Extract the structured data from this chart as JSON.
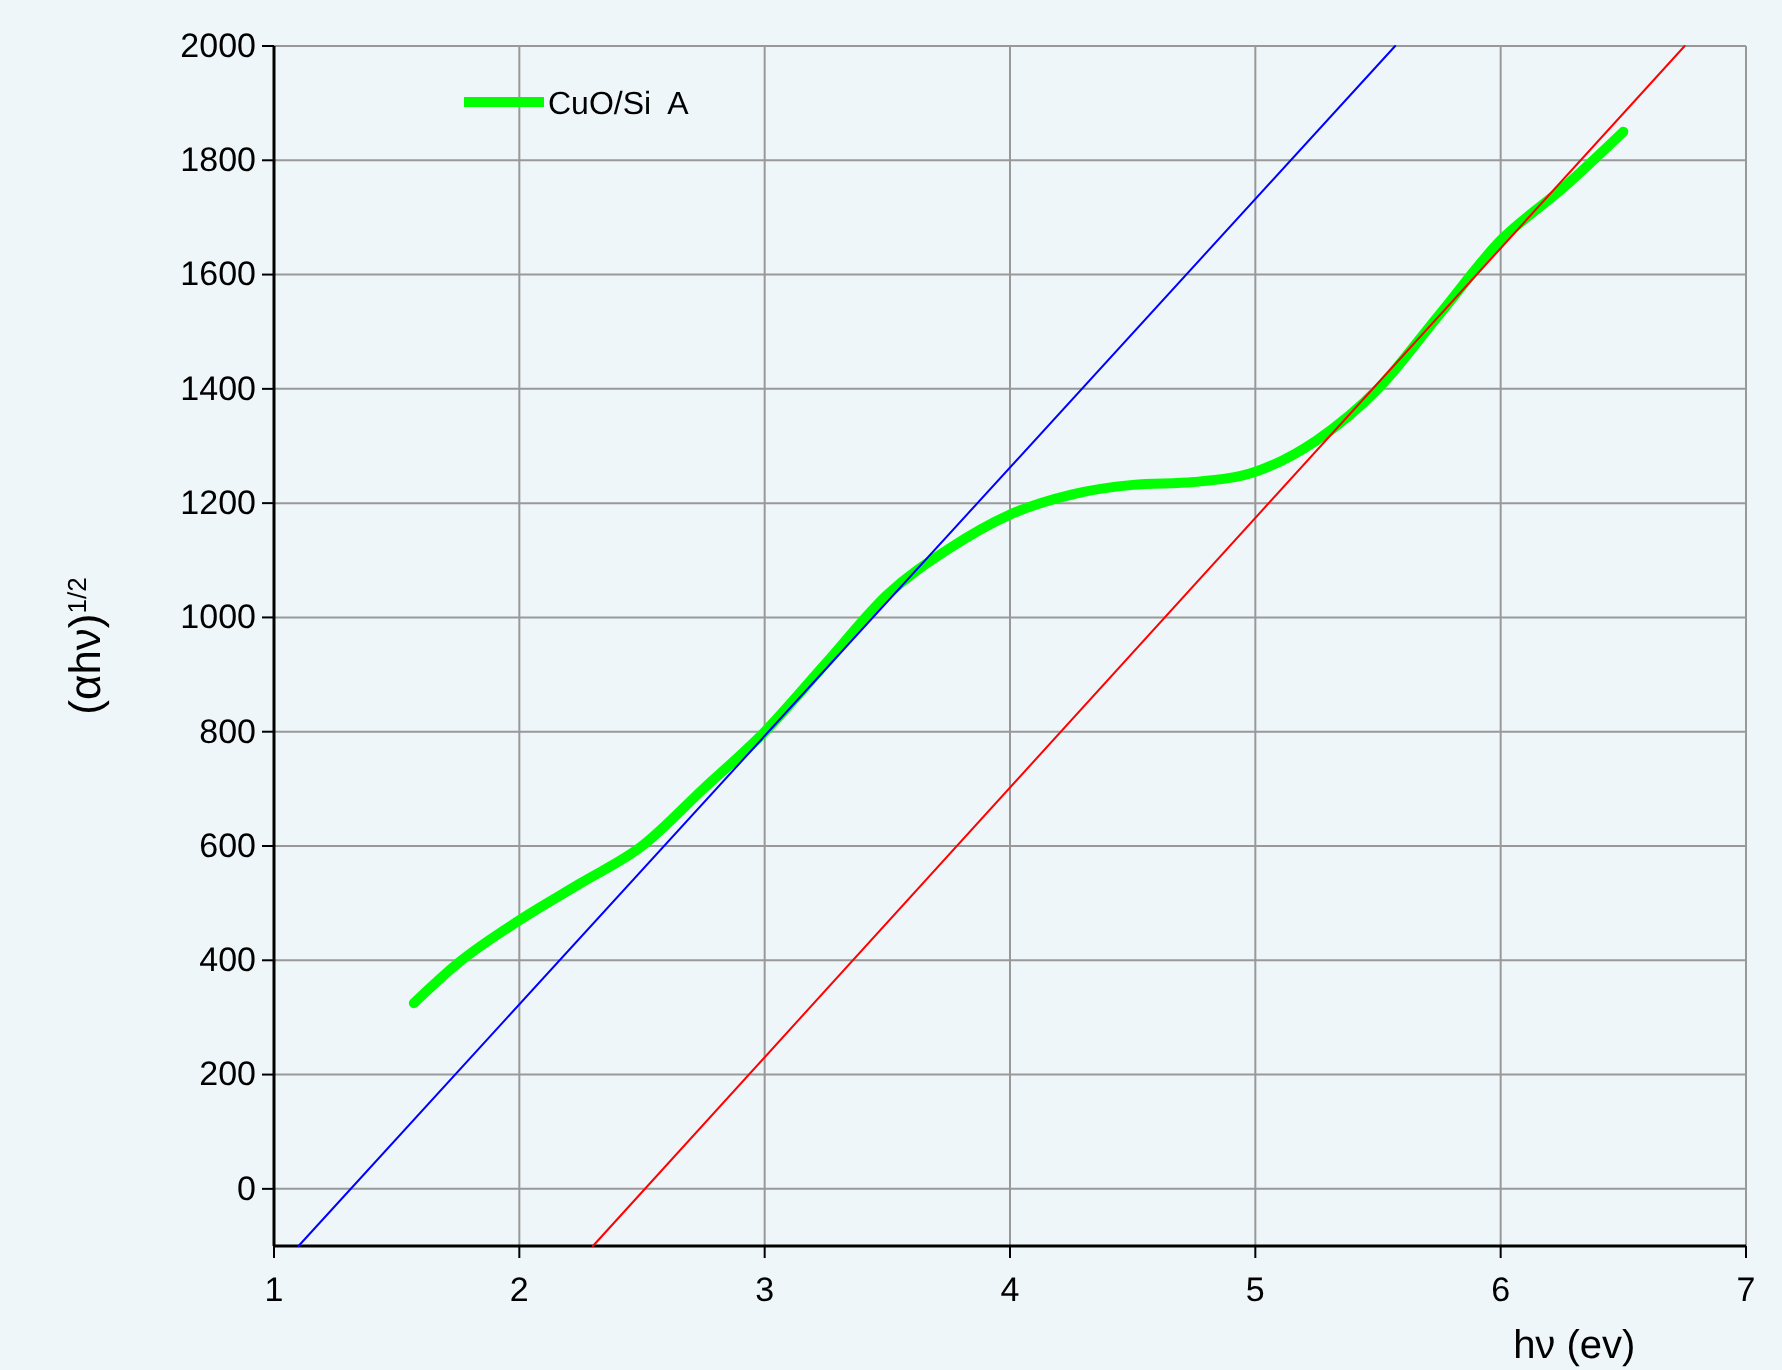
{
  "chart_data": {
    "type": "line",
    "xlabel": "hν (ev)",
    "ylabel": "(αhν)$^{1/2}$",
    "xlim": [
      1,
      7
    ],
    "xticks": [
      1,
      2,
      3,
      4,
      5,
      6,
      7
    ],
    "ylim": [
      -100,
      2000
    ],
    "yticks": [
      0,
      200,
      400,
      600,
      800,
      1000,
      1200,
      1400,
      1600,
      1800,
      2000
    ],
    "grid": true,
    "legend": "top left",
    "line_style": "solid",
    "series": [
      {
        "name": "CuO/Si  A",
        "color": "#00ff00",
        "x": [
          1.57,
          1.75,
          2,
          2.25,
          2.5,
          2.75,
          3,
          3.25,
          3.5,
          3.75,
          4,
          4.25,
          4.5,
          4.75,
          5,
          5.25,
          5.5,
          5.75,
          6,
          6.25,
          6.5
        ],
        "values": [
          325,
          395,
          470,
          535,
          600,
          700,
          800,
          920,
          1040,
          1120,
          1180,
          1215,
          1232,
          1237,
          1255,
          1310,
          1400,
          1530,
          1660,
          1750,
          1850
        ]
      },
      {
        "color": "#0000ff",
        "x": [
          1.1,
          5.57
        ],
        "values": [
          -100,
          2000
        ]
      },
      {
        "color": "#ff0000",
        "x": [
          2.3,
          6.75
        ],
        "values": [
          -100,
          2000
        ]
      }
    ]
  }
}
